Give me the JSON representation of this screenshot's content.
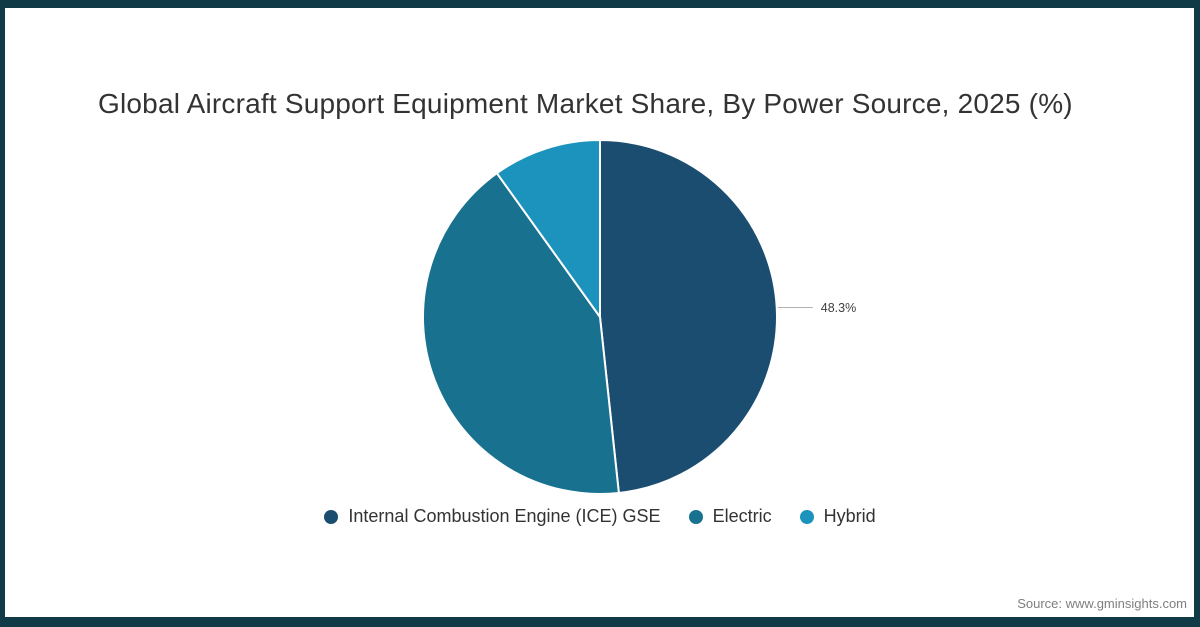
{
  "page": {
    "title": "Global Aircraft Support Equipment Market Share, By Power Source, 2025 (%)",
    "source_note": "Source: www.gminsights.com"
  },
  "colors": {
    "frame": "#0f3a46",
    "background": "#ffffff",
    "title_text": "#333333",
    "legend_text": "#333333",
    "source_text": "#7f7f7f",
    "leader_line": "#b3b3b3",
    "data_label_text": "#404040"
  },
  "chart_data": {
    "type": "pie",
    "title": "Global Aircraft Support Equipment Market Share, By Power Source, 2025 (%)",
    "categories": [
      "Internal Combustion Engine (ICE) GSE",
      "Electric",
      "Hybrid"
    ],
    "values": [
      48.3,
      41.8,
      9.9
    ],
    "colors": [
      "#1b4d71",
      "#17718f",
      "#1b93bc"
    ],
    "data_labels": [
      "48.3%",
      "",
      ""
    ],
    "start_angle_deg": 0,
    "direction": "clockwise",
    "slice_border_color": "#ffffff",
    "legend_position": "bottom"
  }
}
